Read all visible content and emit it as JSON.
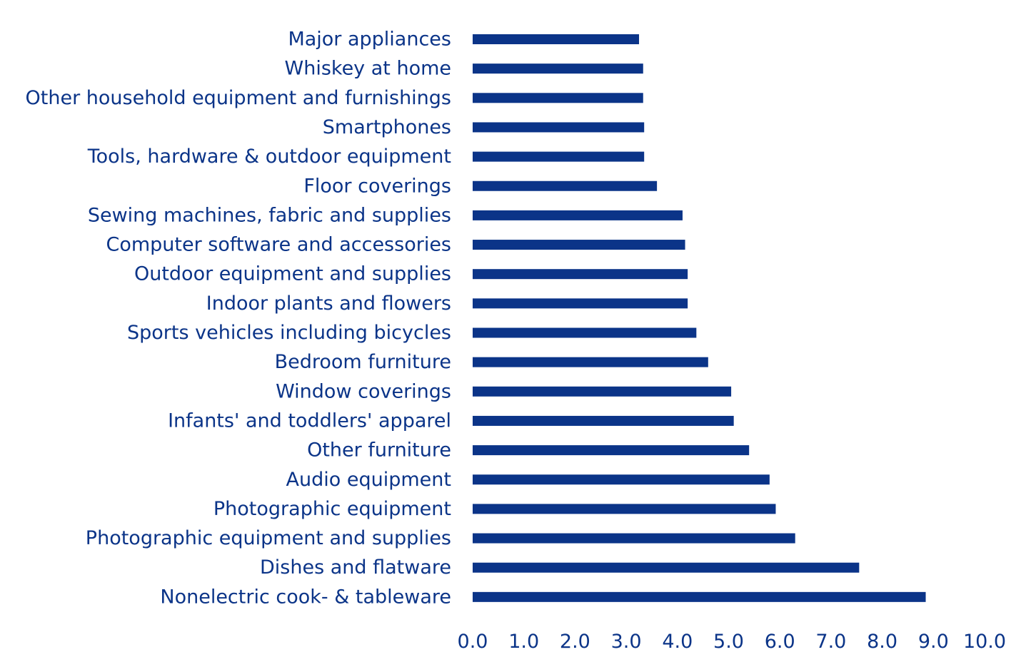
{
  "colors": {
    "bar": "#0b3488",
    "text": "#0b3488",
    "background": "#ffffff"
  },
  "chart_data": {
    "type": "bar",
    "orientation": "horizontal",
    "categories": [
      "Major appliances",
      "Whiskey at home",
      "Other household equipment and furnishings",
      "Smartphones",
      "Tools, hardware & outdoor equipment",
      "Floor coverings",
      "Sewing machines, fabric and supplies",
      "Computer software and accessories",
      "Outdoor equipment and supplies",
      "Indoor plants and flowers",
      "Sports vehicles including bicycles",
      "Bedroom furniture",
      "Window coverings",
      "Infants' and toddlers' apparel",
      "Other furniture",
      "Audio equipment",
      "Photographic equipment",
      "Photographic equipment and supplies",
      "Dishes and flatware",
      "Nonelectric cook- & tableware"
    ],
    "values": [
      3.25,
      3.33,
      3.33,
      3.35,
      3.35,
      3.6,
      4.1,
      4.15,
      4.2,
      4.2,
      4.37,
      4.6,
      5.05,
      5.1,
      5.4,
      5.8,
      5.92,
      6.3,
      7.55,
      8.85
    ],
    "xlim": [
      0,
      10
    ],
    "x_ticks": [
      "0.0",
      "1.0",
      "2.0",
      "3.0",
      "4.0",
      "5.0",
      "6.0",
      "7.0",
      "8.0",
      "9.0",
      "10.0"
    ],
    "grid": false,
    "legend": "none"
  }
}
